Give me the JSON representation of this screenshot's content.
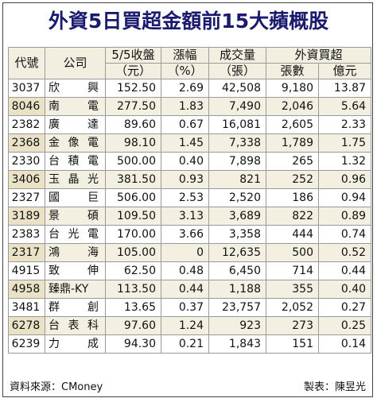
{
  "title": "外資5日買超金額前15大蘋概股",
  "headers": {
    "code": "代號",
    "company": "公司",
    "close": [
      "5/5收盤",
      "（元）"
    ],
    "change": [
      "漲幅",
      "（%）"
    ],
    "volume": [
      "成交量",
      "（張）"
    ],
    "foreign": "外資買超",
    "foreign_lots": "張數",
    "foreign_value": "億元"
  },
  "rows": [
    {
      "code": "3037",
      "name": [
        "欣",
        "興"
      ],
      "close": "152.50",
      "change": "2.69",
      "volume": "42,508",
      "lots": "9,180",
      "value": "13.87"
    },
    {
      "code": "8046",
      "name": [
        "南",
        "電"
      ],
      "close": "277.50",
      "change": "1.83",
      "volume": "7,490",
      "lots": "2,046",
      "value": "5.64"
    },
    {
      "code": "2382",
      "name": [
        "廣",
        "達"
      ],
      "close": "89.60",
      "change": "0.67",
      "volume": "16,081",
      "lots": "2,605",
      "value": "2.33"
    },
    {
      "code": "2368",
      "name": [
        "金",
        "像",
        "電"
      ],
      "close": "98.10",
      "change": "1.45",
      "volume": "7,338",
      "lots": "1,789",
      "value": "1.75"
    },
    {
      "code": "2330",
      "name": [
        "台",
        "積",
        "電"
      ],
      "close": "500.00",
      "change": "0.40",
      "volume": "7,898",
      "lots": "265",
      "value": "1.32"
    },
    {
      "code": "3406",
      "name": [
        "玉",
        "晶",
        "光"
      ],
      "close": "381.50",
      "change": "0.93",
      "volume": "821",
      "lots": "252",
      "value": "0.96"
    },
    {
      "code": "2327",
      "name": [
        "國",
        "巨"
      ],
      "close": "506.00",
      "change": "2.53",
      "volume": "2,520",
      "lots": "186",
      "value": "0.94"
    },
    {
      "code": "3189",
      "name": [
        "景",
        "碩"
      ],
      "close": "109.50",
      "change": "3.13",
      "volume": "3,689",
      "lots": "822",
      "value": "0.89"
    },
    {
      "code": "2383",
      "name": [
        "台",
        "光",
        "電"
      ],
      "close": "170.00",
      "change": "3.66",
      "volume": "3,358",
      "lots": "444",
      "value": "0.74"
    },
    {
      "code": "2317",
      "name": [
        "鴻",
        "海"
      ],
      "close": "105.00",
      "change": "0",
      "volume": "12,635",
      "lots": "500",
      "value": "0.52"
    },
    {
      "code": "4915",
      "name": [
        "致",
        "伸"
      ],
      "close": "62.50",
      "change": "0.48",
      "volume": "6,450",
      "lots": "714",
      "value": "0.44"
    },
    {
      "code": "4958",
      "name": [
        "臻鼎-KY"
      ],
      "close": "113.50",
      "change": "0.44",
      "volume": "1,188",
      "lots": "355",
      "value": "0.40"
    },
    {
      "code": "3481",
      "name": [
        "群",
        "創"
      ],
      "close": "13.65",
      "change": "0.37",
      "volume": "23,757",
      "lots": "2,052",
      "value": "0.27"
    },
    {
      "code": "6278",
      "name": [
        "台",
        "表",
        "科"
      ],
      "close": "97.60",
      "change": "1.24",
      "volume": "923",
      "lots": "273",
      "value": "0.25"
    },
    {
      "code": "6239",
      "name": [
        "力",
        "成"
      ],
      "close": "94.30",
      "change": "0.21",
      "volume": "1,843",
      "lots": "151",
      "value": "0.14"
    }
  ],
  "footer": {
    "source": "資料來源：CMoney",
    "maker": "製表：陳昱光"
  }
}
